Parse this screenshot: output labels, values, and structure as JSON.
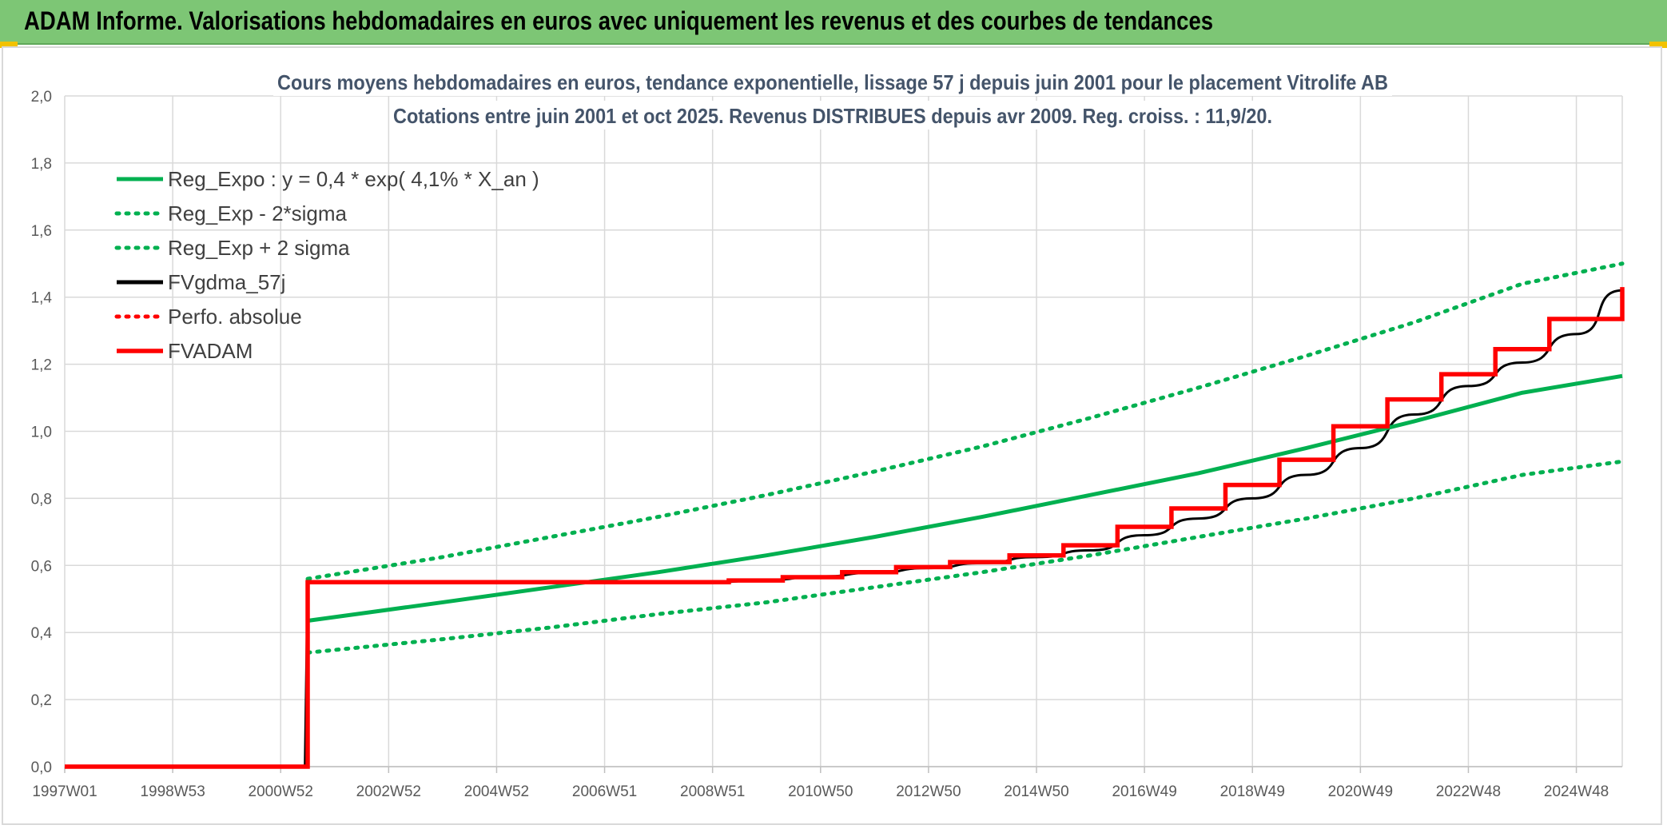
{
  "header": {
    "title": "ADAM Informe. Valorisations hebdomadaires en euros avec uniquement les revenus et des courbes de tendances"
  },
  "colors": {
    "green": "#00b050",
    "red": "#ff0000",
    "black": "#000000",
    "header_bg": "#7dc675"
  },
  "chart_data": {
    "type": "line",
    "title": "Cours moyens hebdomadaires en euros, tendance exponentielle, lissage 57 j depuis juin 2001 pour le placement Vitrolife AB",
    "subtitle": "Cotations entre juin 2001 et oct 2025. Revenus DISTRIBUES depuis avr 2009. Reg. croiss. : 11,9/20.",
    "xlabel": "",
    "ylabel": "",
    "x_range": [
      1997.0,
      2025.85
    ],
    "ylim": [
      0,
      2.0
    ],
    "y_ticks": [
      "0,0",
      "0,2",
      "0,4",
      "0,6",
      "0,8",
      "1,0",
      "1,2",
      "1,4",
      "1,6",
      "1,8",
      "2,0"
    ],
    "x_tick_labels": [
      {
        "label": "1997W01",
        "x": 1997.0
      },
      {
        "label": "1998W53",
        "x": 1999.0
      },
      {
        "label": "2000W52",
        "x": 2001.0
      },
      {
        "label": "2002W52",
        "x": 2003.0
      },
      {
        "label": "2004W52",
        "x": 2005.0
      },
      {
        "label": "2006W51",
        "x": 2007.0
      },
      {
        "label": "2008W51",
        "x": 2009.0
      },
      {
        "label": "2010W50",
        "x": 2011.0
      },
      {
        "label": "2012W50",
        "x": 2013.0
      },
      {
        "label": "2014W50",
        "x": 2015.0
      },
      {
        "label": "2016W49",
        "x": 2017.0
      },
      {
        "label": "2018W49",
        "x": 2019.0
      },
      {
        "label": "2020W49",
        "x": 2021.0
      },
      {
        "label": "2022W48",
        "x": 2023.0
      },
      {
        "label": "2024W48",
        "x": 2025.0
      }
    ],
    "grid": true,
    "legend_position": "top-left",
    "series": [
      {
        "name": "Reg_Expo : y = 0,4 * exp( 4,1% *  X_an )",
        "style": "solid",
        "color": "#00b050",
        "x": [
          2001.5,
          2004,
          2006,
          2008,
          2010,
          2012,
          2014,
          2016,
          2018,
          2020,
          2022,
          2024,
          2025.85
        ],
        "y": [
          0.435,
          0.49,
          0.535,
          0.58,
          0.63,
          0.685,
          0.745,
          0.81,
          0.875,
          0.95,
          1.03,
          1.115,
          1.165
        ]
      },
      {
        "name": "Reg_Exp - 2*sigma",
        "style": "dotted",
        "color": "#00b050",
        "x": [
          2001.5,
          2004,
          2006,
          2008,
          2010,
          2012,
          2014,
          2016,
          2018,
          2020,
          2022,
          2024,
          2025.85
        ],
        "y": [
          0.34,
          0.38,
          0.415,
          0.455,
          0.49,
          0.535,
          0.58,
          0.63,
          0.685,
          0.74,
          0.8,
          0.87,
          0.91
        ]
      },
      {
        "name": "Reg_Exp + 2 sigma",
        "style": "dotted",
        "color": "#00b050",
        "x": [
          2001.5,
          2004,
          2006,
          2008,
          2010,
          2012,
          2014,
          2016,
          2018,
          2020,
          2022,
          2024,
          2025.85
        ],
        "y": [
          0.56,
          0.625,
          0.685,
          0.745,
          0.81,
          0.88,
          0.955,
          1.04,
          1.13,
          1.225,
          1.325,
          1.44,
          1.5
        ]
      },
      {
        "name": "FVgdma_57j",
        "style": "solid",
        "color": "#000000",
        "x": [
          1997.0,
          2001.45,
          2001.5,
          2009.0,
          2010.0,
          2011.0,
          2012.0,
          2013.0,
          2014.0,
          2015.0,
          2016.0,
          2017.0,
          2018.0,
          2019.0,
          2020.0,
          2021.0,
          2022.0,
          2023.0,
          2024.0,
          2025.0,
          2025.85
        ],
        "y": [
          0.0,
          0.0,
          0.55,
          0.55,
          0.557,
          0.567,
          0.578,
          0.592,
          0.607,
          0.625,
          0.645,
          0.69,
          0.74,
          0.8,
          0.87,
          0.95,
          1.05,
          1.135,
          1.205,
          1.29,
          1.42
        ]
      },
      {
        "name": "Perfo. absolue",
        "style": "dotted",
        "color": "#ff0000",
        "x": [],
        "y": []
      },
      {
        "name": "FVADAM",
        "style": "step",
        "color": "#ff0000",
        "x": [
          1997.0,
          2001.45,
          2001.5,
          2009.3,
          2010.3,
          2011.4,
          2012.4,
          2013.4,
          2014.5,
          2015.5,
          2016.5,
          2017.5,
          2018.5,
          2019.5,
          2020.5,
          2021.5,
          2022.5,
          2023.5,
          2024.5,
          2025.85
        ],
        "y": [
          0.0,
          0.0,
          0.55,
          0.555,
          0.565,
          0.58,
          0.595,
          0.61,
          0.63,
          0.66,
          0.715,
          0.77,
          0.84,
          0.915,
          1.015,
          1.095,
          1.17,
          1.245,
          1.335,
          1.43
        ]
      }
    ]
  }
}
